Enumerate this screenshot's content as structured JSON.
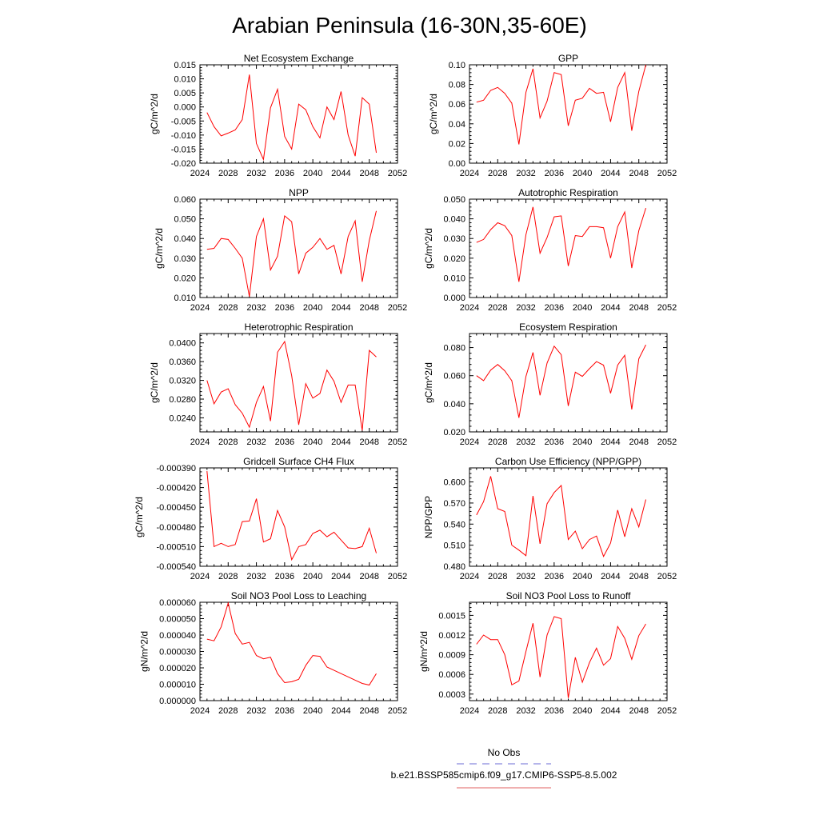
{
  "figure": {
    "title": "Arabian Peninsula (16-30N,35-60E)",
    "legend": [
      {
        "label": "No Obs",
        "color": "#6b6bd6",
        "style": "dashed"
      },
      {
        "label": "b.e21.BSSP585cmip6.f09_g17.CMIP6-SSP5-8.5.002",
        "color": "#e06060",
        "style": "solid"
      }
    ],
    "line_color": "#ff0000"
  },
  "chart_data": [
    {
      "type": "line",
      "title": "Net Ecosystem Exchange",
      "ylabel": "gC/m^2/d",
      "xlim": [
        2024,
        2052
      ],
      "xticks": [
        2024,
        2028,
        2032,
        2036,
        2040,
        2044,
        2048,
        2052
      ],
      "ylim": [
        -0.02,
        0.015
      ],
      "yticks": [
        "0.015",
        "0.010",
        "0.005",
        "0.000",
        "-0.005",
        "-0.010",
        "-0.015",
        "-0.020"
      ],
      "x": [
        2025,
        2026,
        2027,
        2028,
        2029,
        2030,
        2031,
        2032,
        2033,
        2034,
        2035,
        2036,
        2037,
        2038,
        2039,
        2040,
        2041,
        2042,
        2043,
        2044,
        2045,
        2046,
        2047,
        2048,
        2049
      ],
      "values": [
        -0.002,
        -0.007,
        -0.0103,
        -0.0093,
        -0.0082,
        -0.0045,
        0.0115,
        -0.013,
        -0.0187,
        -0.0003,
        0.0063,
        -0.0105,
        -0.015,
        0.001,
        -0.001,
        -0.007,
        -0.011,
        0.0,
        -0.0045,
        0.0055,
        -0.01,
        -0.0175,
        0.0033,
        0.001,
        -0.0163
      ]
    },
    {
      "type": "line",
      "title": "GPP",
      "ylabel": "gC/m^2/d",
      "xlim": [
        2024,
        2052
      ],
      "xticks": [
        2024,
        2028,
        2032,
        2036,
        2040,
        2044,
        2048,
        2052
      ],
      "ylim": [
        0.0,
        0.1
      ],
      "yticks": [
        "0.10",
        "0.08",
        "0.06",
        "0.04",
        "0.02",
        "0.00"
      ],
      "x": [
        2025,
        2026,
        2027,
        2028,
        2029,
        2030,
        2031,
        2032,
        2033,
        2034,
        2035,
        2036,
        2037,
        2038,
        2039,
        2040,
        2041,
        2042,
        2043,
        2044,
        2045,
        2046,
        2047,
        2048,
        2049
      ],
      "values": [
        0.062,
        0.064,
        0.074,
        0.077,
        0.071,
        0.061,
        0.019,
        0.072,
        0.096,
        0.046,
        0.063,
        0.092,
        0.09,
        0.038,
        0.064,
        0.066,
        0.076,
        0.071,
        0.072,
        0.042,
        0.077,
        0.092,
        0.033,
        0.073,
        0.1
      ]
    },
    {
      "type": "line",
      "title": "NPP",
      "ylabel": "gC/m^2/d",
      "xlim": [
        2024,
        2052
      ],
      "xticks": [
        2024,
        2028,
        2032,
        2036,
        2040,
        2044,
        2048,
        2052
      ],
      "ylim": [
        0.01,
        0.06
      ],
      "yticks": [
        "0.060",
        "0.050",
        "0.040",
        "0.030",
        "0.020",
        "0.010"
      ],
      "x": [
        2025,
        2026,
        2027,
        2028,
        2029,
        2030,
        2031,
        2032,
        2033,
        2034,
        2035,
        2036,
        2037,
        2038,
        2039,
        2040,
        2041,
        2042,
        2043,
        2044,
        2045,
        2046,
        2047,
        2048,
        2049
      ],
      "values": [
        0.0345,
        0.035,
        0.04,
        0.0395,
        0.035,
        0.03,
        0.0105,
        0.041,
        0.05,
        0.024,
        0.031,
        0.0515,
        0.0485,
        0.022,
        0.0325,
        0.0355,
        0.04,
        0.0345,
        0.0365,
        0.022,
        0.041,
        0.049,
        0.018,
        0.039,
        0.054
      ]
    },
    {
      "type": "line",
      "title": "Autotrophic Respiration",
      "ylabel": "gC/m^2/d",
      "xlim": [
        2024,
        2052
      ],
      "xticks": [
        2024,
        2028,
        2032,
        2036,
        2040,
        2044,
        2048,
        2052
      ],
      "ylim": [
        0.0,
        0.05
      ],
      "yticks": [
        "0.050",
        "0.040",
        "0.030",
        "0.020",
        "0.010",
        "0.000"
      ],
      "x": [
        2025,
        2026,
        2027,
        2028,
        2029,
        2030,
        2031,
        2032,
        2033,
        2034,
        2035,
        2036,
        2037,
        2038,
        2039,
        2040,
        2041,
        2042,
        2043,
        2044,
        2045,
        2046,
        2047,
        2048,
        2049
      ],
      "values": [
        0.028,
        0.0295,
        0.0345,
        0.038,
        0.0365,
        0.0315,
        0.008,
        0.032,
        0.046,
        0.0225,
        0.0305,
        0.041,
        0.0415,
        0.016,
        0.0315,
        0.031,
        0.036,
        0.036,
        0.0355,
        0.02,
        0.036,
        0.0435,
        0.015,
        0.034,
        0.0455
      ]
    },
    {
      "type": "line",
      "title": "Heterotrophic Respiration",
      "ylabel": "gC/m^2/d",
      "xlim": [
        2024,
        2052
      ],
      "xticks": [
        2024,
        2028,
        2032,
        2036,
        2040,
        2044,
        2048,
        2052
      ],
      "ylim": [
        0.021,
        0.042
      ],
      "yticks": [
        "0.0400",
        "0.0360",
        "0.0320",
        "0.0280",
        "0.0240"
      ],
      "x": [
        2025,
        2026,
        2027,
        2028,
        2029,
        2030,
        2031,
        2032,
        2033,
        2034,
        2035,
        2036,
        2037,
        2038,
        2039,
        2040,
        2041,
        2042,
        2043,
        2044,
        2045,
        2046,
        2047,
        2048,
        2049
      ],
      "values": [
        0.032,
        0.027,
        0.0295,
        0.0302,
        0.0268,
        0.025,
        0.022,
        0.0273,
        0.0307,
        0.0233,
        0.038,
        0.0403,
        0.033,
        0.0225,
        0.0313,
        0.0282,
        0.0292,
        0.0342,
        0.0318,
        0.0273,
        0.031,
        0.031,
        0.0213,
        0.0384,
        0.037
      ]
    },
    {
      "type": "line",
      "title": "Ecosystem Respiration",
      "ylabel": "gC/m^2/d",
      "xlim": [
        2024,
        2052
      ],
      "xticks": [
        2024,
        2028,
        2032,
        2036,
        2040,
        2044,
        2048,
        2052
      ],
      "ylim": [
        0.02,
        0.09
      ],
      "yticks": [
        "0.080",
        "0.060",
        "0.040",
        "0.020"
      ],
      "x": [
        2025,
        2026,
        2027,
        2028,
        2029,
        2030,
        2031,
        2032,
        2033,
        2034,
        2035,
        2036,
        2037,
        2038,
        2039,
        2040,
        2041,
        2042,
        2043,
        2044,
        2045,
        2046,
        2047,
        2048,
        2049
      ],
      "values": [
        0.06,
        0.0565,
        0.064,
        0.068,
        0.0635,
        0.0565,
        0.03,
        0.0595,
        0.0765,
        0.046,
        0.069,
        0.081,
        0.075,
        0.0385,
        0.0625,
        0.0595,
        0.065,
        0.07,
        0.0675,
        0.0475,
        0.0675,
        0.0745,
        0.036,
        0.072,
        0.082
      ]
    },
    {
      "type": "line",
      "title": "Gridcell Surface CH4 Flux",
      "ylabel": "gC/m^2/d",
      "xlim": [
        2024,
        2052
      ],
      "xticks": [
        2024,
        2028,
        2032,
        2036,
        2040,
        2044,
        2048,
        2052
      ],
      "ylim": [
        -0.00054,
        -0.00039
      ],
      "yticks": [
        "-0.000390",
        "-0.000420",
        "-0.000450",
        "-0.000480",
        "-0.000510",
        "-0.000540"
      ],
      "x": [
        2025,
        2026,
        2027,
        2028,
        2029,
        2030,
        2031,
        2032,
        2033,
        2034,
        2035,
        2036,
        2037,
        2038,
        2039,
        2040,
        2041,
        2042,
        2043,
        2044,
        2045,
        2046,
        2047,
        2048,
        2049
      ],
      "values": [
        -0.000395,
        -0.00051,
        -0.000505,
        -0.00051,
        -0.000507,
        -0.000472,
        -0.000471,
        -0.000437,
        -0.000503,
        -0.000498,
        -0.000455,
        -0.00048,
        -0.00053,
        -0.00051,
        -0.000507,
        -0.00049,
        -0.000485,
        -0.000495,
        -0.000488,
        -0.0005,
        -0.000512,
        -0.000513,
        -0.00051,
        -0.000482,
        -0.00052
      ]
    },
    {
      "type": "line",
      "title": "Carbon Use Efficiency (NPP/GPP)",
      "ylabel": "NPP/GPP",
      "xlim": [
        2024,
        2052
      ],
      "xticks": [
        2024,
        2028,
        2032,
        2036,
        2040,
        2044,
        2048,
        2052
      ],
      "ylim": [
        0.48,
        0.62
      ],
      "yticks": [
        "0.600",
        "0.570",
        "0.540",
        "0.510",
        "0.480"
      ],
      "x": [
        2025,
        2026,
        2027,
        2028,
        2029,
        2030,
        2031,
        2032,
        2033,
        2034,
        2035,
        2036,
        2037,
        2038,
        2039,
        2040,
        2041,
        2042,
        2043,
        2044,
        2045,
        2046,
        2047,
        2048,
        2049
      ],
      "values": [
        0.553,
        0.572,
        0.608,
        0.562,
        0.558,
        0.51,
        0.503,
        0.495,
        0.58,
        0.512,
        0.569,
        0.585,
        0.595,
        0.518,
        0.53,
        0.505,
        0.518,
        0.523,
        0.494,
        0.513,
        0.56,
        0.522,
        0.562,
        0.536,
        0.575
      ]
    },
    {
      "type": "line",
      "title": "Soil NO3 Pool Loss to Leaching",
      "ylabel": "gN/m^2/d",
      "xlim": [
        2024,
        2052
      ],
      "xticks": [
        2024,
        2028,
        2032,
        2036,
        2040,
        2044,
        2048,
        2052
      ],
      "ylim": [
        0.0,
        6e-05
      ],
      "yticks": [
        "0.000060",
        "0.000050",
        "0.000040",
        "0.000030",
        "0.000020",
        "0.000010",
        "0.000000"
      ],
      "x": [
        2025,
        2026,
        2027,
        2028,
        2029,
        2030,
        2031,
        2032,
        2033,
        2034,
        2035,
        2036,
        2037,
        2038,
        2039,
        2040,
        2041,
        2042,
        2043,
        2044,
        2045,
        2046,
        2047,
        2048,
        2049
      ],
      "values": [
        3.75e-05,
        3.65e-05,
        4.5e-05,
        5.95e-05,
        4.1e-05,
        3.45e-05,
        3.55e-05,
        2.75e-05,
        2.55e-05,
        2.65e-05,
        1.65e-05,
        1.1e-05,
        1.15e-05,
        1.3e-05,
        2.15e-05,
        2.75e-05,
        2.7e-05,
        2.05e-05,
        1.85e-05,
        1.65e-05,
        1.45e-05,
        1.25e-05,
        1.05e-05,
        9.5e-06,
        1.65e-05
      ]
    },
    {
      "type": "line",
      "title": "Soil NO3 Pool Loss to Runoff",
      "ylabel": "gN/m^2/d",
      "xlim": [
        2024,
        2052
      ],
      "xticks": [
        2024,
        2028,
        2032,
        2036,
        2040,
        2044,
        2048,
        2052
      ],
      "ylim": [
        0.0002,
        0.0017
      ],
      "yticks": [
        "0.0015",
        "0.0012",
        "0.0009",
        "0.0006",
        "0.0003"
      ],
      "x": [
        2025,
        2026,
        2027,
        2028,
        2029,
        2030,
        2031,
        2032,
        2033,
        2034,
        2035,
        2036,
        2037,
        2038,
        2039,
        2040,
        2041,
        2042,
        2043,
        2044,
        2045,
        2046,
        2047,
        2048,
        2049
      ],
      "values": [
        0.00106,
        0.0012,
        0.00113,
        0.00113,
        0.0009,
        0.00044,
        0.0005,
        0.00095,
        0.00138,
        0.00056,
        0.0012,
        0.00148,
        0.00145,
        0.00024,
        0.00086,
        0.00048,
        0.00078,
        0.001,
        0.00074,
        0.00084,
        0.00133,
        0.00115,
        0.00083,
        0.00119,
        0.00137
      ]
    }
  ]
}
